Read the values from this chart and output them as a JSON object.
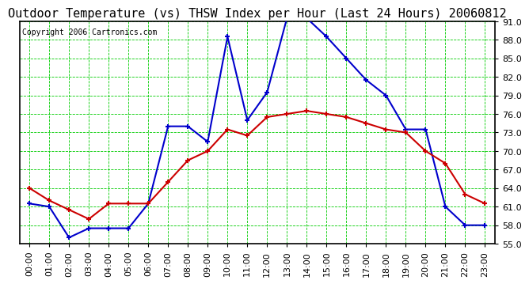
{
  "title": "Outdoor Temperature (vs) THSW Index per Hour (Last 24 Hours) 20060812",
  "copyright": "Copyright 2006 Cartronics.com",
  "hours": [
    0,
    1,
    2,
    3,
    4,
    5,
    6,
    7,
    8,
    9,
    10,
    11,
    12,
    13,
    14,
    15,
    16,
    17,
    18,
    19,
    20,
    21,
    22,
    23
  ],
  "hour_labels": [
    "00:00",
    "01:00",
    "02:00",
    "03:00",
    "04:00",
    "05:00",
    "06:00",
    "07:00",
    "08:00",
    "09:00",
    "10:00",
    "11:00",
    "12:00",
    "13:00",
    "14:00",
    "15:00",
    "16:00",
    "17:00",
    "18:00",
    "19:00",
    "20:00",
    "21:00",
    "22:00",
    "23:00"
  ],
  "temp_red": [
    64.0,
    62.0,
    60.5,
    59.0,
    61.5,
    61.5,
    61.5,
    65.0,
    68.5,
    70.0,
    73.5,
    72.5,
    75.5,
    76.0,
    76.5,
    76.0,
    75.5,
    74.5,
    73.5,
    73.0,
    70.0,
    68.0,
    63.0,
    61.5
  ],
  "thsw_blue": [
    61.5,
    61.0,
    56.0,
    57.5,
    57.5,
    57.5,
    61.5,
    74.0,
    74.0,
    71.5,
    88.5,
    75.0,
    79.5,
    91.5,
    91.5,
    88.5,
    85.0,
    81.5,
    79.0,
    73.5,
    73.5,
    61.0,
    58.0,
    58.0
  ],
  "ylim_min": 55.0,
  "ylim_max": 91.0,
  "ytick_step": 3.0,
  "yticks": [
    55.0,
    58.0,
    61.0,
    64.0,
    67.0,
    70.0,
    73.0,
    76.0,
    79.0,
    82.0,
    85.0,
    88.0,
    91.0
  ],
  "bg_color": "#ffffff",
  "plot_bg_color": "#ffffff",
  "red_color": "#cc0000",
  "blue_color": "#0000cc",
  "grid_color": "#00cc00",
  "title_color": "#000000",
  "axis_label_color": "#000000",
  "border_color": "#000000",
  "title_fontsize": 11,
  "copyright_fontsize": 7,
  "tick_fontsize": 8,
  "linewidth": 1.5,
  "marker_size": 5
}
